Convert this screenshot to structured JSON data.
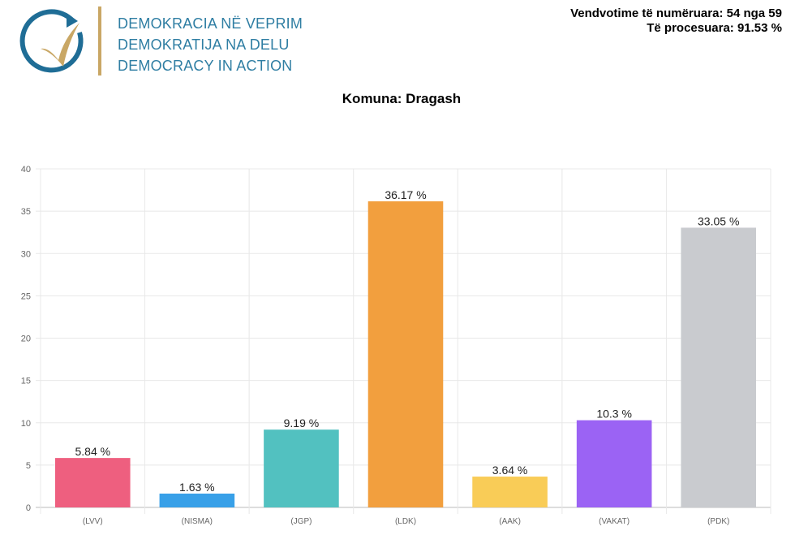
{
  "header": {
    "logo_lines": [
      "DEMOKRACIA NË VEPRIM",
      "DEMOKRATIJA NA DELU",
      "DEMOCRACY IN ACTION"
    ],
    "counted_label": "Vendvotime të numëruara: 54 nga 59",
    "processed_label": "Të procesuara: 91.53 %"
  },
  "colors": {
    "logo_blue": "#1f6d96",
    "logo_gold": "#c9a765"
  },
  "chart_data": {
    "type": "bar",
    "title": "Komuna: Dragash",
    "categories": [
      "(LVV)",
      "(NISMA)",
      "(JGP)",
      "(LDK)",
      "(AAK)",
      "(VAKAT)",
      "(PDK)"
    ],
    "values": [
      5.84,
      1.63,
      9.19,
      36.17,
      3.64,
      10.3,
      33.05
    ],
    "data_labels": [
      "5.84 %",
      "1.63 %",
      "9.19 %",
      "36.17 %",
      "3.64 %",
      "10.3 %",
      "33.05 %"
    ],
    "colors": [
      "#ee5f7f",
      "#38a0e8",
      "#52c1c0",
      "#f29f3e",
      "#f9cc57",
      "#9b63f4",
      "#c9cbcf"
    ],
    "ylim": [
      0,
      40
    ],
    "yticks": [
      0,
      5,
      10,
      15,
      20,
      25,
      30,
      35,
      40
    ],
    "grid": true,
    "xlabel": "",
    "ylabel": ""
  }
}
